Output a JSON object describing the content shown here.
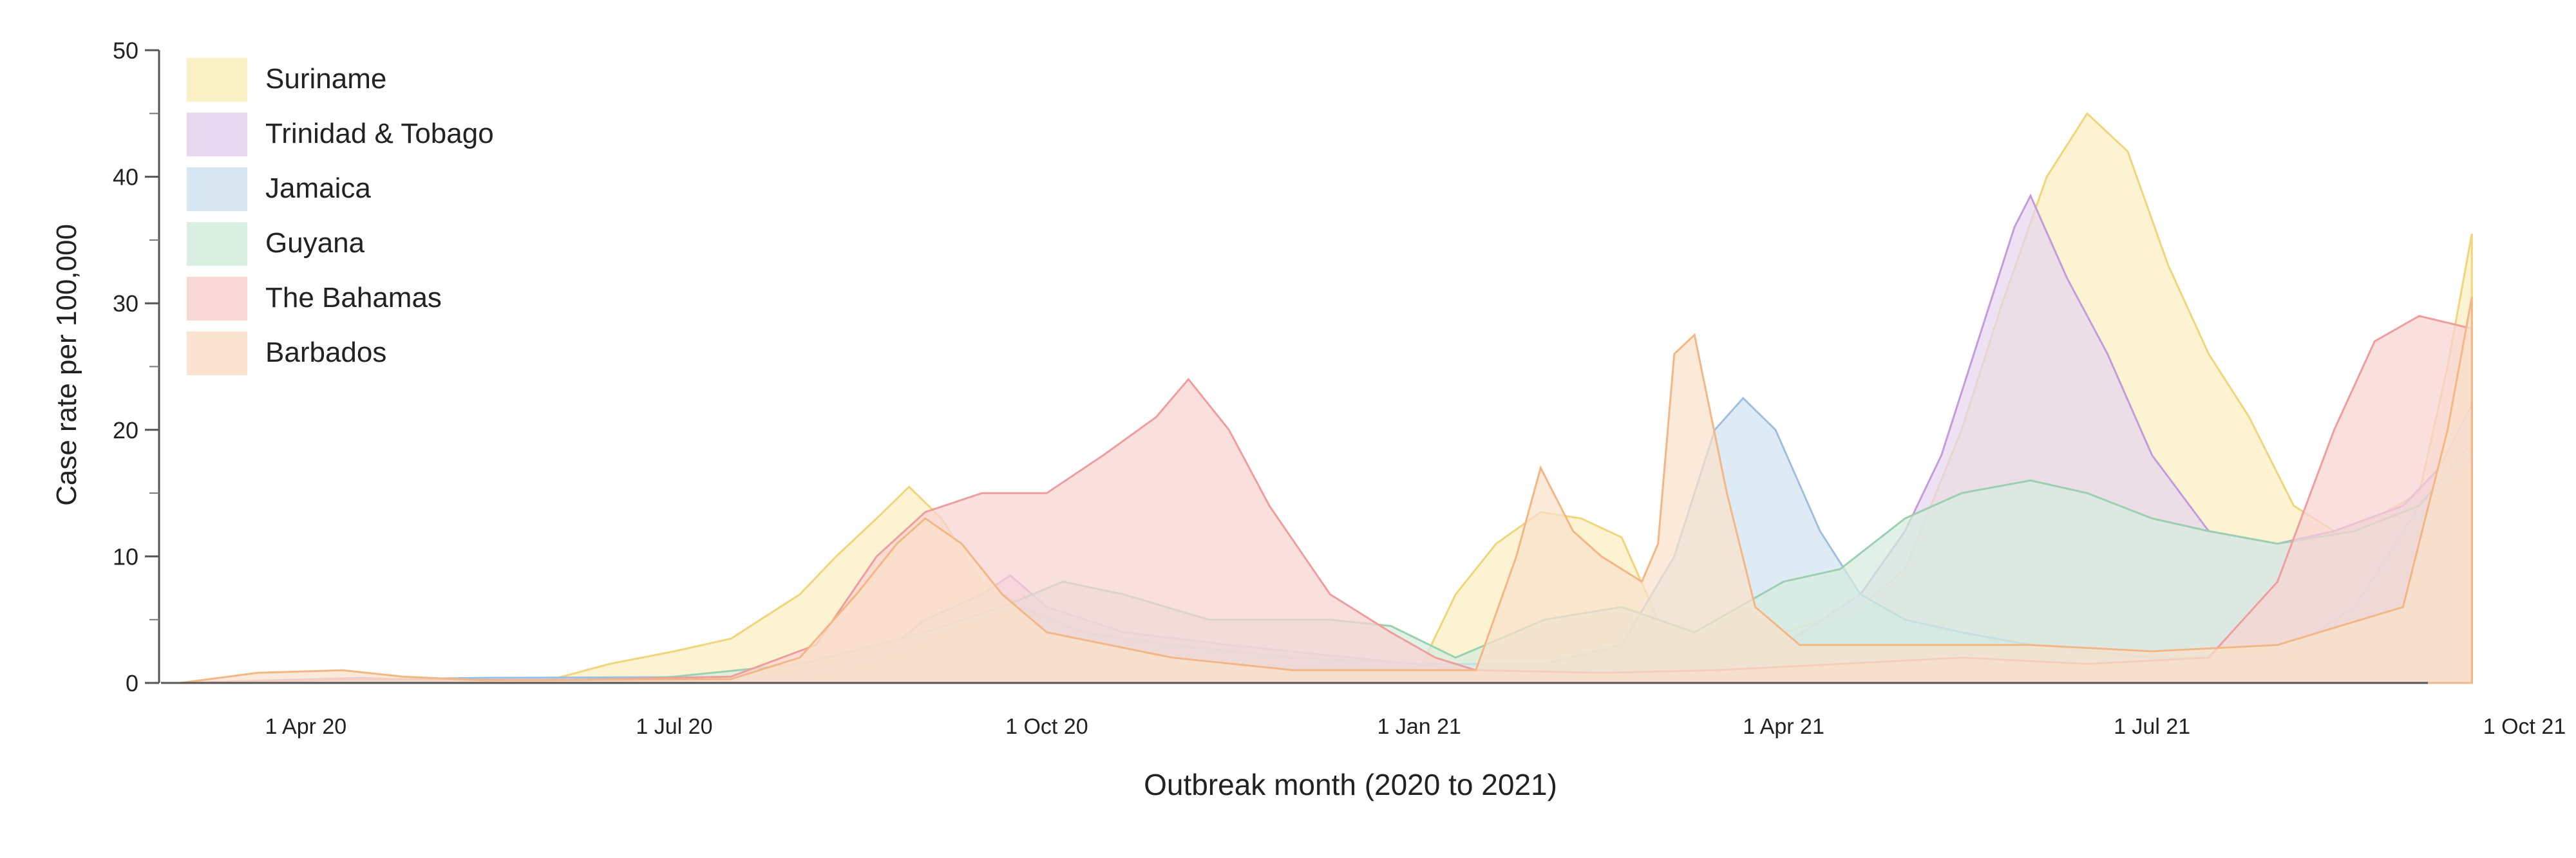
{
  "chart_data": {
    "type": "area",
    "xlabel": "Outbreak month (2020 to 2021)",
    "ylabel": "Case rate per 100,000",
    "ylim": [
      0,
      50
    ],
    "yticks": [
      0,
      10,
      20,
      30,
      40,
      50
    ],
    "xlim": [
      "2020-03-01",
      "2021-10-01"
    ],
    "xticks": [
      {
        "date": "2020-04-01",
        "label": "1 Apr 20"
      },
      {
        "date": "2020-07-01",
        "label": "1 Jul 20"
      },
      {
        "date": "2020-10-01",
        "label": "1 Oct 20"
      },
      {
        "date": "2021-01-01",
        "label": "1 Jan 21"
      },
      {
        "date": "2021-04-01",
        "label": "1 Apr 21"
      },
      {
        "date": "2021-07-01",
        "label": "1 Jul 21"
      },
      {
        "date": "2021-10-01",
        "label": "1 Oct 21"
      }
    ],
    "legend_position": "top-left",
    "grid": false,
    "series": [
      {
        "name": "Suriname",
        "fill": "#fbefc1",
        "stroke": "#f1d57a",
        "points": [
          [
            "2020-03-01",
            0
          ],
          [
            "2020-05-15",
            0.2
          ],
          [
            "2020-06-01",
            0.3
          ],
          [
            "2020-06-15",
            1.5
          ],
          [
            "2020-07-01",
            2.5
          ],
          [
            "2020-07-15",
            3.5
          ],
          [
            "2020-08-01",
            7
          ],
          [
            "2020-08-10",
            10
          ],
          [
            "2020-08-20",
            13
          ],
          [
            "2020-08-28",
            15.5
          ],
          [
            "2020-09-05",
            13
          ],
          [
            "2020-09-15",
            8
          ],
          [
            "2020-10-01",
            5
          ],
          [
            "2020-10-20",
            3
          ],
          [
            "2020-11-15",
            2
          ],
          [
            "2020-12-15",
            1.5
          ],
          [
            "2021-01-01",
            1
          ],
          [
            "2021-01-10",
            7
          ],
          [
            "2021-01-20",
            11
          ],
          [
            "2021-01-31",
            13.5
          ],
          [
            "2021-02-10",
            13
          ],
          [
            "2021-02-20",
            11.5
          ],
          [
            "2021-03-01",
            5
          ],
          [
            "2021-03-15",
            3
          ],
          [
            "2021-04-01",
            4
          ],
          [
            "2021-04-20",
            6
          ],
          [
            "2021-05-01",
            9
          ],
          [
            "2021-05-15",
            20
          ],
          [
            "2021-05-25",
            30
          ],
          [
            "2021-06-05",
            40
          ],
          [
            "2021-06-15",
            45
          ],
          [
            "2021-06-25",
            42
          ],
          [
            "2021-07-05",
            33
          ],
          [
            "2021-07-15",
            26
          ],
          [
            "2021-07-25",
            21
          ],
          [
            "2021-08-05",
            14
          ],
          [
            "2021-08-15",
            12
          ],
          [
            "2021-08-25",
            13
          ],
          [
            "2021-09-05",
            15
          ],
          [
            "2021-09-12",
            25
          ],
          [
            "2021-09-18",
            35.5
          ]
        ]
      },
      {
        "name": "Trinidad & Tobago",
        "fill": "#e6d5ef",
        "stroke": "#c69bdb",
        "points": [
          [
            "2020-03-01",
            0
          ],
          [
            "2020-04-15",
            0.4
          ],
          [
            "2020-05-01",
            0.2
          ],
          [
            "2020-08-01",
            0.5
          ],
          [
            "2020-08-20",
            2
          ],
          [
            "2020-09-01",
            5
          ],
          [
            "2020-09-15",
            7
          ],
          [
            "2020-09-22",
            8.5
          ],
          [
            "2020-10-01",
            6
          ],
          [
            "2020-10-20",
            4
          ],
          [
            "2020-11-15",
            3
          ],
          [
            "2020-12-15",
            2
          ],
          [
            "2021-01-15",
            1
          ],
          [
            "2021-02-15",
            1
          ],
          [
            "2021-03-15",
            1.5
          ],
          [
            "2021-04-01",
            3
          ],
          [
            "2021-04-20",
            7
          ],
          [
            "2021-05-01",
            12
          ],
          [
            "2021-05-10",
            18
          ],
          [
            "2021-05-20",
            28
          ],
          [
            "2021-05-28",
            36
          ],
          [
            "2021-06-01",
            38.5
          ],
          [
            "2021-06-10",
            32
          ],
          [
            "2021-06-20",
            26
          ],
          [
            "2021-07-01",
            18
          ],
          [
            "2021-07-15",
            12
          ],
          [
            "2021-08-01",
            11
          ],
          [
            "2021-08-15",
            12
          ],
          [
            "2021-09-01",
            14
          ],
          [
            "2021-09-10",
            17
          ],
          [
            "2021-09-18",
            22
          ]
        ]
      },
      {
        "name": "Jamaica",
        "fill": "#d3e3f0",
        "stroke": "#9ec0de",
        "points": [
          [
            "2020-03-01",
            0
          ],
          [
            "2020-04-20",
            0.3
          ],
          [
            "2020-05-15",
            0.4
          ],
          [
            "2020-08-01",
            0.5
          ],
          [
            "2020-08-20",
            2
          ],
          [
            "2020-09-10",
            5
          ],
          [
            "2020-09-25",
            6
          ],
          [
            "2020-10-10",
            4
          ],
          [
            "2020-11-01",
            3
          ],
          [
            "2020-12-01",
            2
          ],
          [
            "2021-01-01",
            1.5
          ],
          [
            "2021-02-01",
            1.5
          ],
          [
            "2021-02-20",
            3
          ],
          [
            "2021-03-05",
            10
          ],
          [
            "2021-03-15",
            20
          ],
          [
            "2021-03-22",
            22.5
          ],
          [
            "2021-03-30",
            20
          ],
          [
            "2021-04-10",
            12
          ],
          [
            "2021-04-20",
            7
          ],
          [
            "2021-05-01",
            5
          ],
          [
            "2021-05-15",
            4
          ],
          [
            "2021-06-01",
            3
          ],
          [
            "2021-07-01",
            2
          ],
          [
            "2021-08-01",
            2
          ],
          [
            "2021-08-20",
            6
          ],
          [
            "2021-09-05",
            14
          ],
          [
            "2021-09-18",
            18
          ]
        ]
      },
      {
        "name": "Guyana",
        "fill": "#d6ecdf",
        "stroke": "#9bd0b0",
        "points": [
          [
            "2020-03-01",
            0
          ],
          [
            "2020-06-15",
            0.2
          ],
          [
            "2020-07-01",
            0.5
          ],
          [
            "2020-08-01",
            1.5
          ],
          [
            "2020-09-01",
            4
          ],
          [
            "2020-09-20",
            6
          ],
          [
            "2020-10-05",
            8
          ],
          [
            "2020-10-20",
            7
          ],
          [
            "2020-11-10",
            5
          ],
          [
            "2020-12-10",
            5
          ],
          [
            "2020-12-25",
            4.5
          ],
          [
            "2021-01-10",
            2
          ],
          [
            "2021-02-01",
            5
          ],
          [
            "2021-02-20",
            6
          ],
          [
            "2021-03-10",
            4
          ],
          [
            "2021-04-01",
            8
          ],
          [
            "2021-04-15",
            9
          ],
          [
            "2021-05-01",
            13
          ],
          [
            "2021-05-15",
            15
          ],
          [
            "2021-06-01",
            16
          ],
          [
            "2021-06-15",
            15
          ],
          [
            "2021-07-01",
            13
          ],
          [
            "2021-07-15",
            12
          ],
          [
            "2021-08-01",
            11
          ],
          [
            "2021-08-20",
            12
          ],
          [
            "2021-09-05",
            14
          ],
          [
            "2021-09-18",
            19
          ]
        ]
      },
      {
        "name": "The Bahamas",
        "fill": "#f8d3d3",
        "stroke": "#ef9e9e",
        "points": [
          [
            "2020-03-01",
            0
          ],
          [
            "2020-04-15",
            0.3
          ],
          [
            "2020-06-01",
            0.2
          ],
          [
            "2020-07-15",
            0.5
          ],
          [
            "2020-08-05",
            3
          ],
          [
            "2020-08-20",
            10
          ],
          [
            "2020-09-01",
            13.5
          ],
          [
            "2020-09-15",
            15
          ],
          [
            "2020-10-01",
            15
          ],
          [
            "2020-10-15",
            18
          ],
          [
            "2020-10-28",
            21
          ],
          [
            "2020-11-05",
            24
          ],
          [
            "2020-11-15",
            20
          ],
          [
            "2020-11-25",
            14
          ],
          [
            "2020-12-10",
            7
          ],
          [
            "2020-12-25",
            4
          ],
          [
            "2021-01-05",
            2
          ],
          [
            "2021-01-15",
            1
          ],
          [
            "2021-02-15",
            0.8
          ],
          [
            "2021-03-15",
            1
          ],
          [
            "2021-04-15",
            1.5
          ],
          [
            "2021-05-15",
            2
          ],
          [
            "2021-06-15",
            1.5
          ],
          [
            "2021-07-15",
            2
          ],
          [
            "2021-08-01",
            8
          ],
          [
            "2021-08-15",
            20
          ],
          [
            "2021-08-25",
            27
          ],
          [
            "2021-09-05",
            29
          ],
          [
            "2021-09-18",
            28
          ]
        ]
      },
      {
        "name": "Barbados",
        "fill": "#fae1ca",
        "stroke": "#f3b785",
        "points": [
          [
            "2020-03-01",
            0
          ],
          [
            "2020-03-20",
            0.8
          ],
          [
            "2020-04-10",
            1
          ],
          [
            "2020-04-25",
            0.5
          ],
          [
            "2020-05-15",
            0.2
          ],
          [
            "2020-07-15",
            0.3
          ],
          [
            "2020-08-01",
            2
          ],
          [
            "2020-08-15",
            7
          ],
          [
            "2020-08-25",
            11
          ],
          [
            "2020-09-01",
            13
          ],
          [
            "2020-09-10",
            11
          ],
          [
            "2020-09-20",
            7
          ],
          [
            "2020-10-01",
            4
          ],
          [
            "2020-11-01",
            2
          ],
          [
            "2020-12-01",
            1
          ],
          [
            "2021-01-15",
            1
          ],
          [
            "2021-01-25",
            10
          ],
          [
            "2021-01-31",
            17
          ],
          [
            "2021-02-08",
            12
          ],
          [
            "2021-02-15",
            10
          ],
          [
            "2021-02-25",
            8
          ],
          [
            "2021-03-01",
            11
          ],
          [
            "2021-03-05",
            26
          ],
          [
            "2021-03-10",
            27.5
          ],
          [
            "2021-03-18",
            15
          ],
          [
            "2021-03-25",
            6
          ],
          [
            "2021-04-05",
            3
          ],
          [
            "2021-05-01",
            3
          ],
          [
            "2021-06-01",
            3
          ],
          [
            "2021-07-01",
            2.5
          ],
          [
            "2021-08-01",
            3
          ],
          [
            "2021-09-01",
            6
          ],
          [
            "2021-09-12",
            20
          ],
          [
            "2021-09-18",
            30.5
          ]
        ]
      }
    ]
  }
}
